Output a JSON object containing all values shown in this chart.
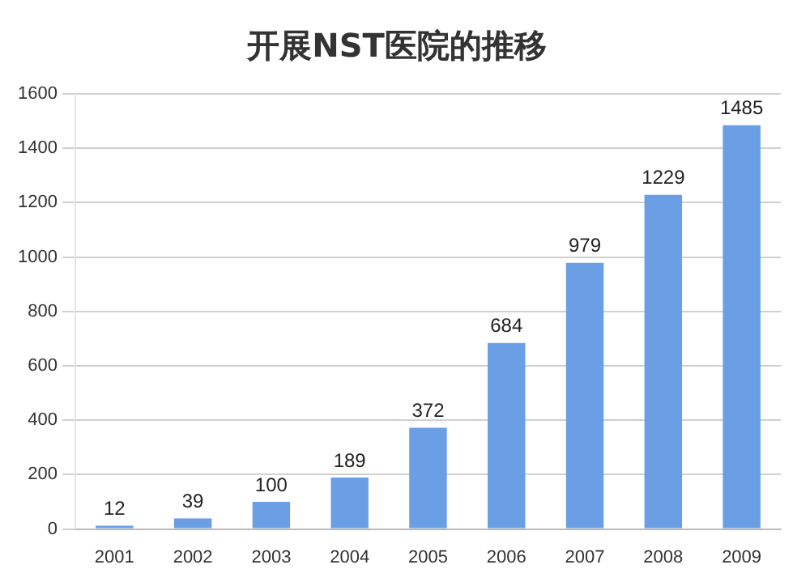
{
  "chart_data": {
    "type": "bar",
    "title": "开展NST医院的推移",
    "categories": [
      "2001",
      "2002",
      "2003",
      "2004",
      "2005",
      "2006",
      "2007",
      "2008",
      "2009"
    ],
    "values": [
      12,
      39,
      100,
      189,
      372,
      684,
      979,
      1229,
      1485
    ],
    "color": "#6a9fe6",
    "ylim": [
      0,
      1600
    ],
    "yticks": [
      0,
      200,
      400,
      600,
      800,
      1000,
      1200,
      1400,
      1600
    ],
    "grid": "y",
    "data_labels": true,
    "legend": false
  }
}
